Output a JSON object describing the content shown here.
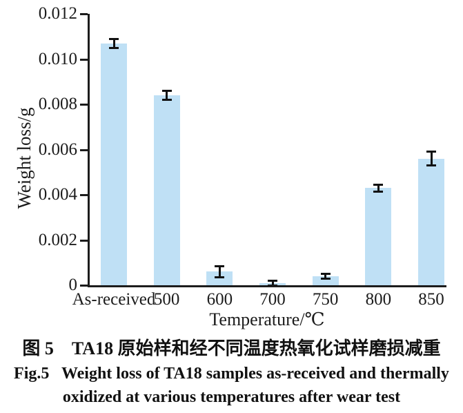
{
  "chart_data": {
    "type": "bar",
    "title": "",
    "categories": [
      "As-received",
      "500",
      "600",
      "700",
      "750",
      "800",
      "850"
    ],
    "values": [
      0.0107,
      0.0084,
      0.0006,
      0.0001,
      0.0004,
      0.0043,
      0.0056
    ],
    "errors": [
      0.0002,
      0.0002,
      0.00025,
      0.0001,
      0.0001,
      0.00015,
      0.0003
    ],
    "xlabel": "Temperature/℃",
    "ylabel": "Weight loss/g",
    "ylim": [
      0,
      0.012
    ],
    "yticks": [
      0,
      0.002,
      0.004,
      0.006,
      0.008,
      0.01,
      0.012
    ],
    "ytick_labels": [
      "0",
      "0.002",
      "0.004",
      "0.006",
      "0.008",
      "0.010",
      "0.012"
    ],
    "grid": false,
    "legend": "none",
    "bar_color": "#bfe0f5",
    "error_bar_color": "#111111",
    "axis_color": "#1c1c1c"
  },
  "captions": {
    "chinese": "图 5　TA18 原始样和经不同温度热氧化试样磨损减重",
    "english_line1": "Fig.5   Weight loss of TA18 samples as-received and thermally",
    "english_line2": "oxidized at various temperatures after wear test"
  }
}
